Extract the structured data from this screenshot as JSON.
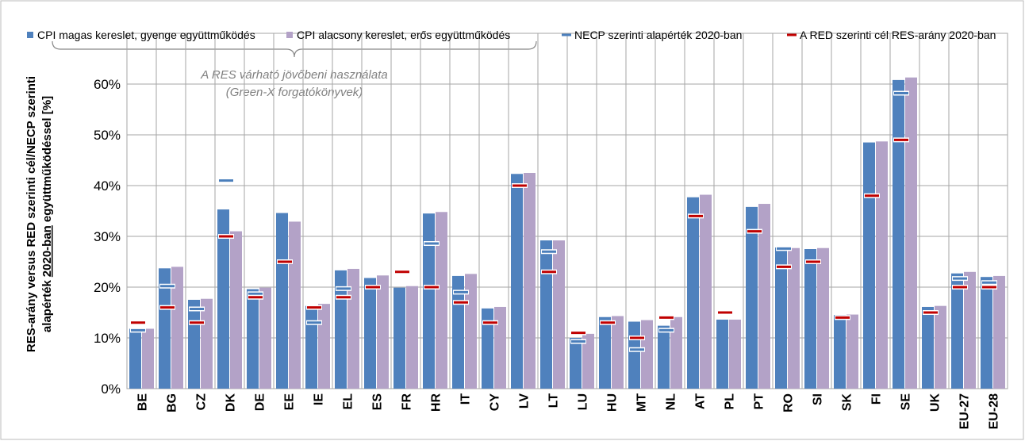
{
  "chart_data": {
    "type": "bar",
    "annotation": [
      "A RES várható jövőbeni használata",
      "(Green-X forgatókönyvek)"
    ],
    "ylabel": [
      "RES-arány versus RED szerinti cél/NECP szerinti",
      "alapérték",
      "2020-ban",
      "együttműködéssel [%]"
    ],
    "categories": [
      "BE",
      "BG",
      "CZ",
      "DK",
      "DE",
      "EE",
      "IE",
      "EL",
      "ES",
      "FR",
      "HR",
      "IT",
      "CY",
      "LV",
      "LT",
      "LU",
      "HU",
      "MT",
      "NL",
      "AT",
      "PL",
      "PT",
      "RO",
      "SI",
      "SK",
      "FI",
      "SE",
      "UK",
      "EU-27",
      "EU-28"
    ],
    "series": [
      {
        "name": "CPI magas kereslet, gyenge együttműködés",
        "type": "bar",
        "color": "#4f81bd",
        "values": [
          11.8,
          23.7,
          17.5,
          35.3,
          19.6,
          34.6,
          16.3,
          23.3,
          21.8,
          19.9,
          34.5,
          22.2,
          15.8,
          42.3,
          29.2,
          10.0,
          14.1,
          13.2,
          12.4,
          37.7,
          13.6,
          35.8,
          27.8,
          27.5,
          14.5,
          48.5,
          60.8,
          16.1,
          22.7,
          22.0
        ]
      },
      {
        "name": "CPI alacsony kereslet, erős együttműködés",
        "type": "bar",
        "color": "#b3a2c7",
        "values": [
          11.8,
          24.0,
          17.7,
          31.0,
          19.9,
          32.9,
          16.7,
          23.6,
          22.3,
          20.2,
          34.8,
          22.6,
          16.1,
          42.5,
          29.2,
          10.8,
          14.3,
          13.5,
          14.1,
          38.2,
          13.6,
          36.4,
          27.7,
          27.7,
          14.6,
          48.7,
          61.3,
          16.3,
          23.0,
          22.2
        ]
      },
      {
        "name": "NECP szerinti alapérték 2020-ban",
        "type": "marker",
        "color": "#4a7ebb",
        "values": [
          11.5,
          20.2,
          15.7,
          41.0,
          18.7,
          null,
          13.0,
          19.7,
          null,
          null,
          28.6,
          19.0,
          null,
          null,
          27.0,
          9.3,
          null,
          7.7,
          11.5,
          null,
          null,
          null,
          27.6,
          null,
          null,
          null,
          58.2,
          null,
          21.7,
          20.9
        ]
      },
      {
        "name": "A RED szerinti cél RES-arány 2020-ban",
        "type": "marker",
        "color": "#c00000",
        "values": [
          13,
          16,
          13,
          30,
          18,
          25,
          16,
          18,
          20,
          23,
          20,
          17,
          13,
          40,
          23,
          11,
          13,
          10,
          14,
          34,
          15,
          31,
          24,
          25,
          14,
          38,
          49,
          15,
          20,
          20
        ]
      }
    ],
    "ylim": [
      0,
      70
    ],
    "yticks": [
      {
        "value": 0,
        "label": "0%"
      },
      {
        "value": 10,
        "label": "10%"
      },
      {
        "value": 20,
        "label": "20%"
      },
      {
        "value": 30,
        "label": "30%"
      },
      {
        "value": 40,
        "label": "40%"
      },
      {
        "value": 50,
        "label": "50%"
      },
      {
        "value": 60,
        "label": "60%"
      }
    ],
    "grid": true
  }
}
